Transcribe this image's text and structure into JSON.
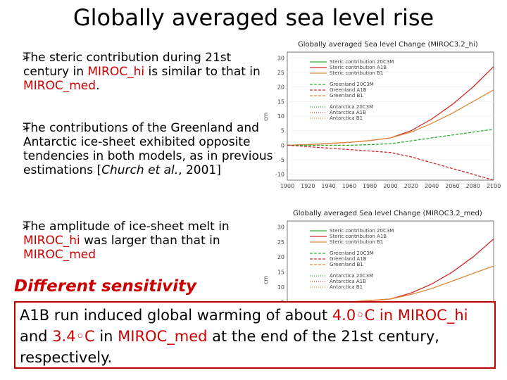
{
  "title": "Globally averaged sea level rise",
  "bullet1": {
    "a": "The steric contribution during 21st century in ",
    "b": "MIROC_hi",
    "c": " is similar to that in ",
    "d": "MIROC_med",
    "e": "."
  },
  "bullet2": {
    "a": "The contributions of the Greenland and Antarctic ice-sheet exhibited opposite tendencies in both models, as in previous estimations [",
    "b": "Church et al.",
    "c": ", 2001]"
  },
  "bullet3": {
    "a": "The amplitude of ice-sheet melt in ",
    "b": "MIROC_hi",
    "c": " was larger than that in ",
    "d": "MIROC_med"
  },
  "different": "Different sensitivity",
  "box": {
    "a": "A1B run induced global warming of about ",
    "b": "4.0◦C in MIROC_hi",
    "c": " and ",
    "d": "3.4◦C",
    "e": " in ",
    "f": "MIROC_med",
    "g": " at the end of the 21st century, respectively."
  },
  "colors": {
    "green": "#2fae2f",
    "red": "#d22a2a",
    "orange": "#e08a3a"
  },
  "chart_data": [
    {
      "type": "line",
      "title": "Globally averaged Sea level Change (MIROC3.2_hi)",
      "ylabel": "cm",
      "x": [
        1900,
        1920,
        1940,
        1960,
        1980,
        2000,
        2020,
        2040,
        2060,
        2080,
        2100
      ],
      "xticks": [
        "1900",
        "1920",
        "1940",
        "1960",
        "1980",
        "2000",
        "2020",
        "2040",
        "2060",
        "2080",
        "2100"
      ],
      "yticks": [
        "30",
        "25",
        "20",
        "15",
        "10",
        "5",
        "0",
        "-5",
        "-10"
      ],
      "ylim": [
        -12,
        32
      ],
      "legend": [
        "Steric contribution 20C3M",
        "Steric contribution A1B",
        "Steric contribution B1",
        "Greenland 20C3M",
        "Greenland A1B",
        "Greenland B1",
        "Antarctica 20C3M",
        "Antarctica A1B",
        "Antarctica B1"
      ],
      "series": [
        {
          "name": "Steric contribution A1B",
          "values": [
            0,
            0.2,
            0.6,
            1.0,
            1.6,
            2.5,
            5,
            9,
            14,
            20,
            27
          ]
        },
        {
          "name": "Steric contribution B1",
          "values": [
            0,
            0.2,
            0.6,
            1.0,
            1.6,
            2.5,
            4.5,
            7.5,
            11,
            15,
            19
          ]
        },
        {
          "name": "Greenland A1B",
          "values": [
            0,
            0,
            0,
            0,
            0.2,
            0.5,
            1.5,
            2.5,
            3.5,
            4.5,
            5.5
          ]
        },
        {
          "name": "Antarctica A1B",
          "values": [
            0,
            -0.5,
            -1,
            -1.5,
            -2,
            -2.5,
            -4,
            -6,
            -8,
            -10,
            -12
          ]
        }
      ]
    },
    {
      "type": "line",
      "title": "Globally averaged Sea level Change (MIROC3.2_med)",
      "ylabel": "cm",
      "yticks": [
        "30",
        "25",
        "20",
        "15",
        "10",
        "5"
      ],
      "ylim": [
        2,
        32
      ],
      "legend": [
        "Steric contribution 20C3M",
        "Steric contribution A1B",
        "Steric contribution B1",
        "Greenland 20C3M",
        "Greenland A1B",
        "Greenland B1",
        "Antarctica 20C3M",
        "Antarctica A1B",
        "Antarctica B1"
      ]
    }
  ]
}
